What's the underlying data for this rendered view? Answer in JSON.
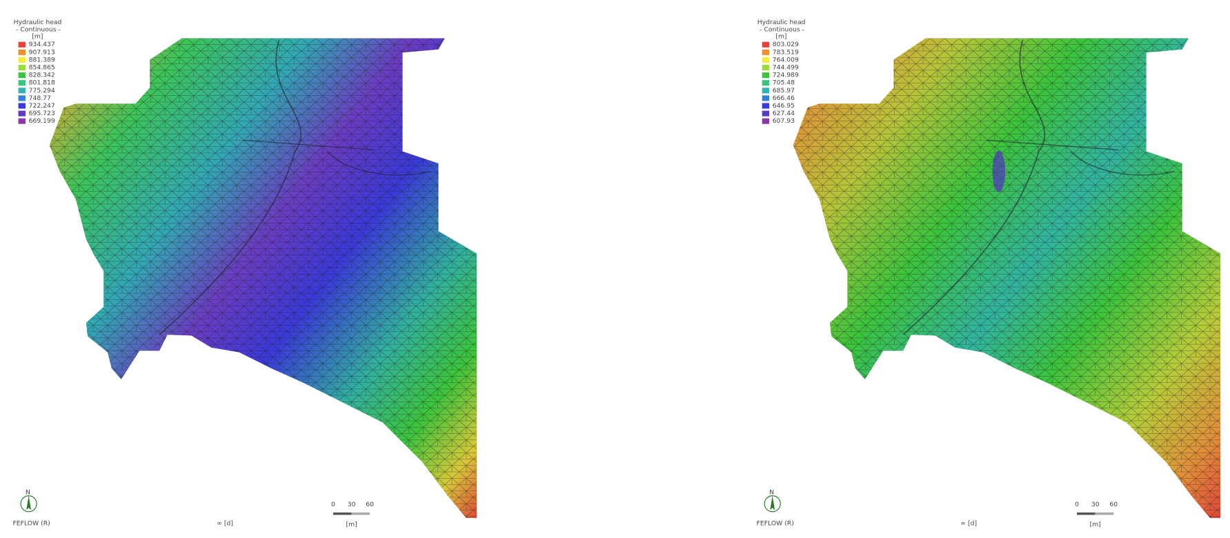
{
  "panels": [
    {
      "legend": {
        "title": "Hydraulic head",
        "subtitle": "- Continuous -",
        "unit": "[m]",
        "entries": [
          {
            "label": "934.437",
            "color": "#e8413a"
          },
          {
            "label": "907.913",
            "color": "#f0902c"
          },
          {
            "label": "881.389",
            "color": "#f2ee3a"
          },
          {
            "label": "854.865",
            "color": "#9bdc3a"
          },
          {
            "label": "828.342",
            "color": "#3cc43c"
          },
          {
            "label": "801.818",
            "color": "#36c47e"
          },
          {
            "label": "775.294",
            "color": "#32b4b4"
          },
          {
            "label": "748.77",
            "color": "#3482d8"
          },
          {
            "label": "722.247",
            "color": "#3a3ae0"
          },
          {
            "label": "695.723",
            "color": "#5a38c8"
          },
          {
            "label": "669.199",
            "color": "#8a3aa8"
          }
        ]
      },
      "north": "N",
      "credit": "FEFLOW (R)",
      "time": "∞ [d]",
      "scale": {
        "ticks": [
          "0",
          "30",
          "60"
        ],
        "unit": "[m]"
      }
    },
    {
      "legend": {
        "title": "Hydraulic head",
        "subtitle": "- Continuous -",
        "unit": "[m]",
        "entries": [
          {
            "label": "803.029",
            "color": "#e8413a"
          },
          {
            "label": "783.519",
            "color": "#f0902c"
          },
          {
            "label": "764.009",
            "color": "#f2ee3a"
          },
          {
            "label": "744.499",
            "color": "#9bdc3a"
          },
          {
            "label": "724.989",
            "color": "#3cc43c"
          },
          {
            "label": "705.48",
            "color": "#36c47e"
          },
          {
            "label": "685.97",
            "color": "#32b4b4"
          },
          {
            "label": "666.46",
            "color": "#3482d8"
          },
          {
            "label": "646.95",
            "color": "#3a3ae0"
          },
          {
            "label": "627.44",
            "color": "#5a38c8"
          },
          {
            "label": "607.93",
            "color": "#8a3aa8"
          }
        ]
      },
      "north": "N",
      "credit": "FEFLOW (R)",
      "time": "∞ [d]",
      "scale": {
        "ticks": [
          "0",
          "30",
          "60"
        ],
        "unit": "[m]"
      }
    }
  ]
}
